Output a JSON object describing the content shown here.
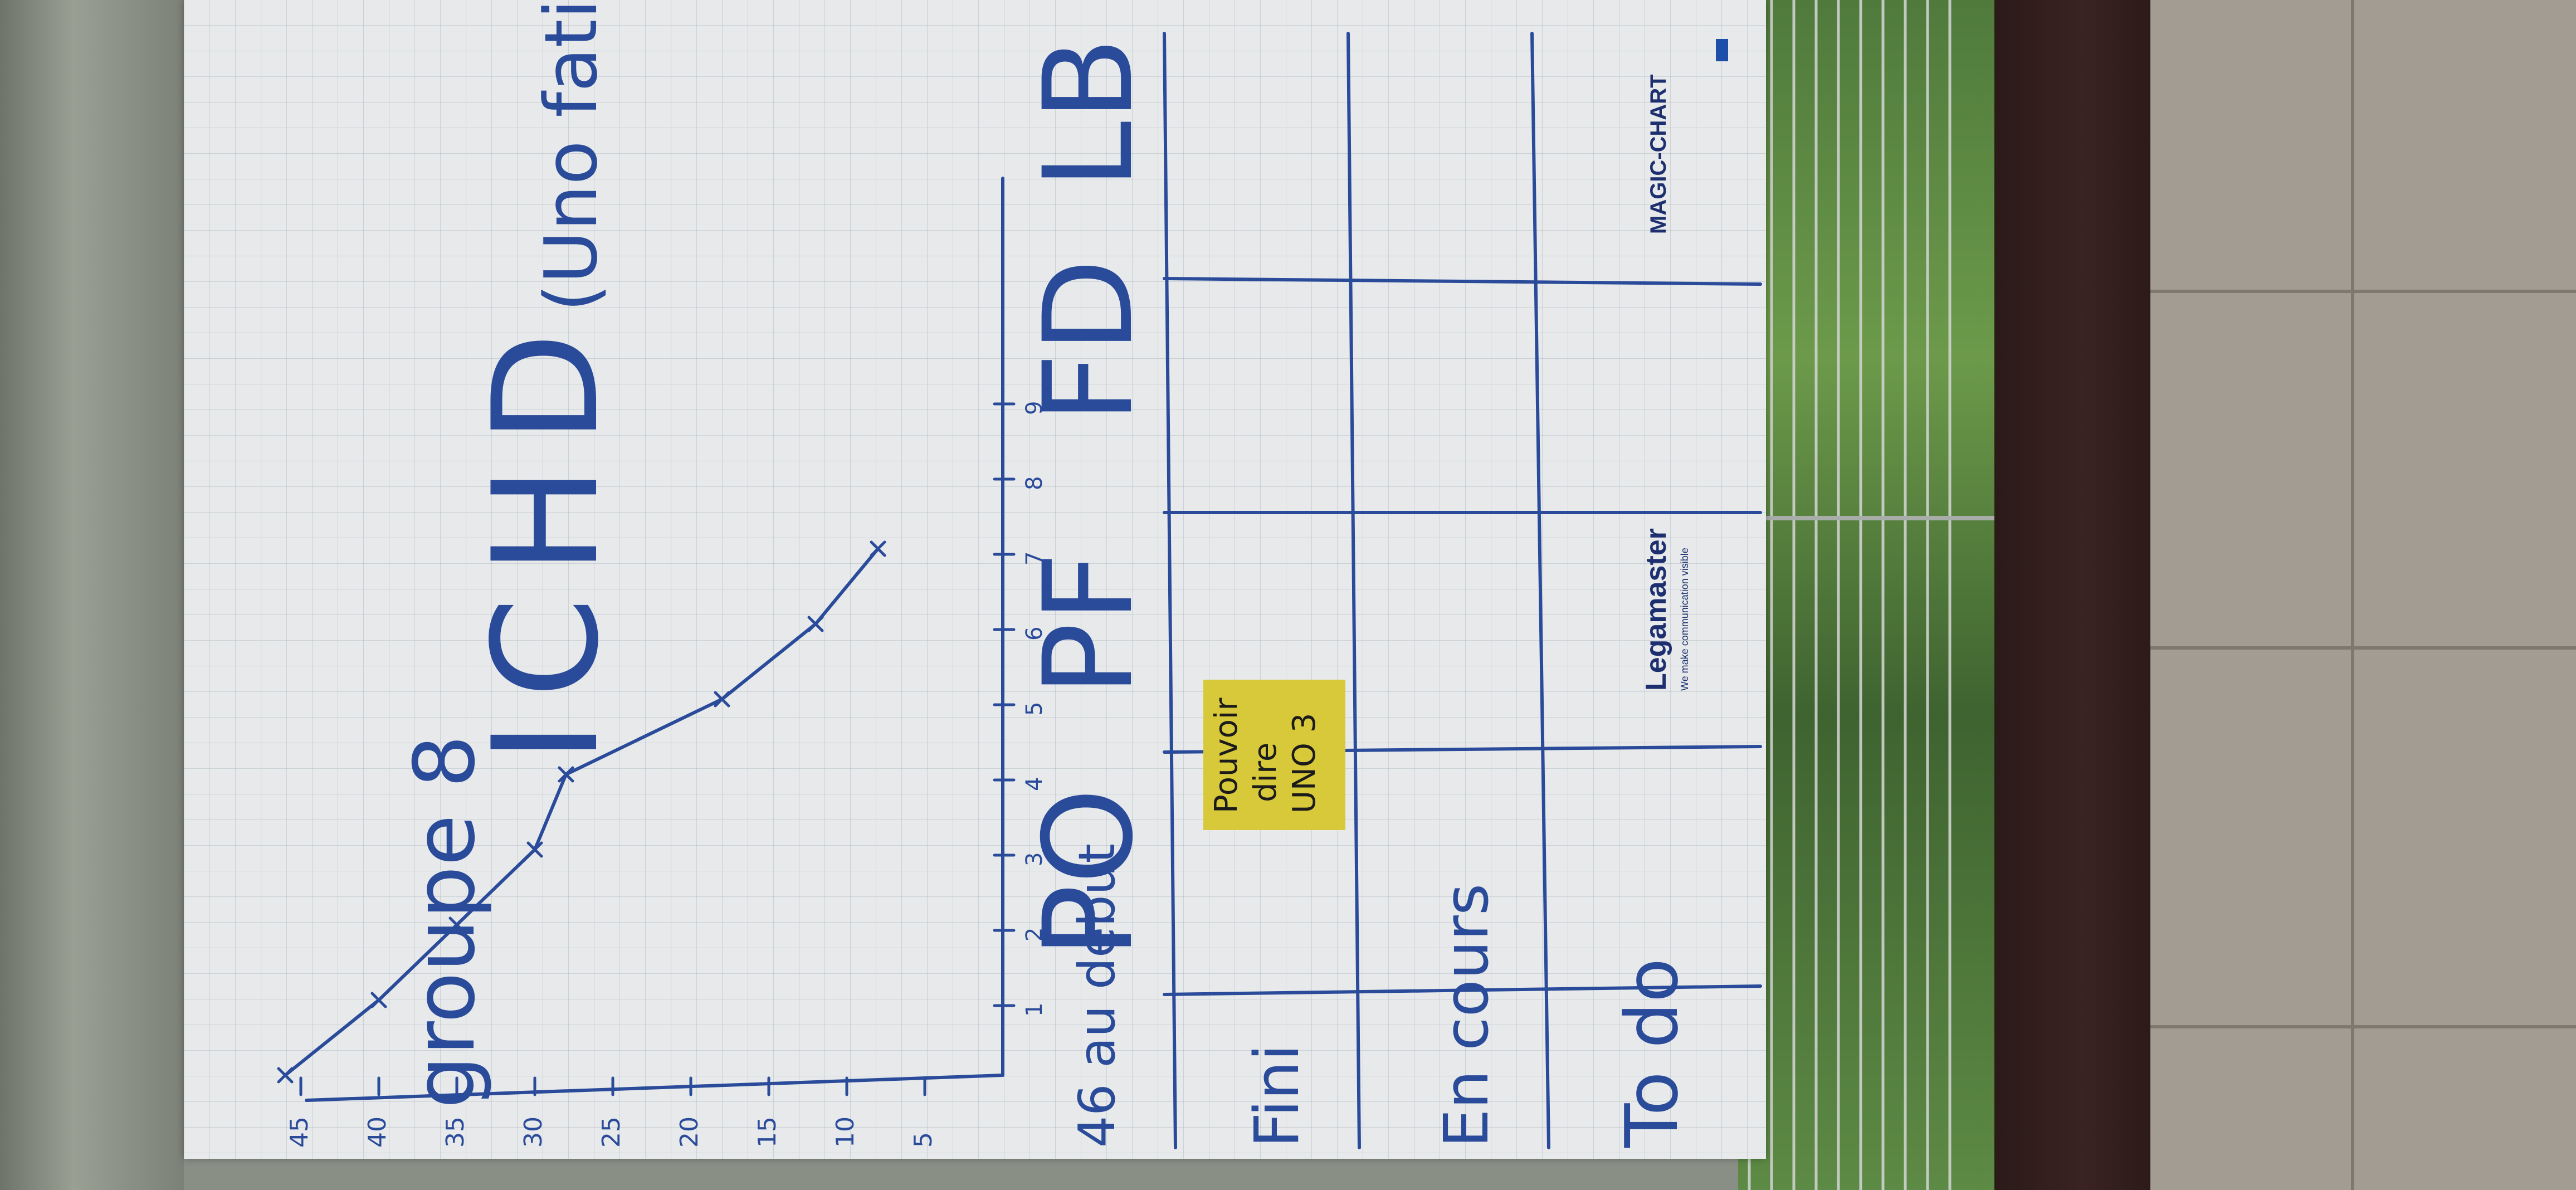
{
  "flipchart": {
    "handwriting": {
      "group": "groupe 8",
      "title_initials": "ICHD",
      "title_note": "(Uno fatigue)",
      "y_axis_start_label": "46 au debut",
      "y_ticks": [
        "45",
        "40",
        "35",
        "30",
        "25",
        "20",
        "15",
        "10",
        "5"
      ],
      "x_ticks": [
        "1",
        "2",
        "3",
        "4",
        "5",
        "6",
        "7",
        "8",
        "9"
      ],
      "roles": [
        "PO",
        "PF",
        "FD",
        "LB"
      ],
      "column_labels": [
        "Fini",
        "En cours",
        "To do"
      ]
    },
    "sticky_note": {
      "line1": "Pouvoir",
      "line2": "dire",
      "line3": "UNO 3"
    },
    "brand": {
      "product": "MAGIC-CHART",
      "maker": "Legamaster",
      "tagline": "We make communication visible"
    }
  },
  "chart_data": {
    "type": "line",
    "x": [
      0,
      1,
      2,
      3,
      4,
      5,
      6,
      7
    ],
    "y": [
      46,
      40,
      35,
      30,
      28,
      18,
      12,
      8
    ],
    "x_ticks": [
      "1",
      "2",
      "3",
      "4",
      "5",
      "6",
      "7",
      "8",
      "9"
    ],
    "y_ticks": [
      "45",
      "40",
      "35",
      "30",
      "25",
      "20",
      "15",
      "10",
      "5"
    ],
    "colors": {
      "ink": "#2a4a9a",
      "sticky": "#d8c93a"
    }
  }
}
